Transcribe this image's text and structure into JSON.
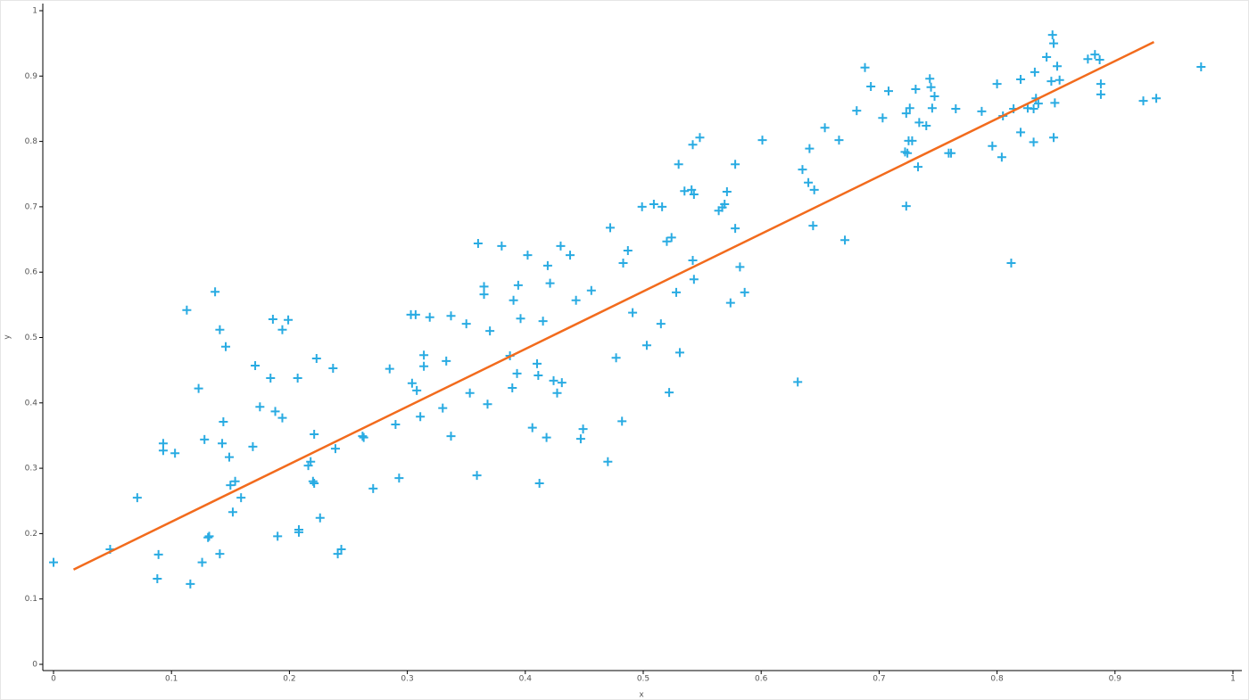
{
  "chart_data": {
    "type": "scatter",
    "x_label": "x",
    "y_label": "y",
    "xlim": [
      0,
      1
    ],
    "ylim": [
      0,
      1
    ],
    "xticks": [
      0,
      0.1,
      0.2,
      0.3,
      0.4,
      0.5,
      0.6,
      0.7,
      0.8,
      0.9,
      1
    ],
    "yticks": [
      0,
      0.1,
      0.2,
      0.3,
      0.4,
      0.5,
      0.6,
      0.7,
      0.8,
      0.9,
      1
    ],
    "series": [
      {
        "type": "scatter",
        "color": "#29abe2",
        "x": [
          0.0,
          0.048,
          0.071,
          0.089,
          0.088,
          0.093,
          0.093,
          0.103,
          0.113,
          0.116,
          0.123,
          0.126,
          0.128,
          0.131,
          0.132,
          0.137,
          0.141,
          0.141,
          0.143,
          0.144,
          0.146,
          0.149,
          0.15,
          0.152,
          0.154,
          0.159,
          0.169,
          0.171,
          0.175,
          0.184,
          0.186,
          0.188,
          0.19,
          0.194,
          0.194,
          0.199,
          0.207,
          0.208,
          0.208,
          0.216,
          0.218,
          0.22,
          0.221,
          0.221,
          0.223,
          0.226,
          0.237,
          0.239,
          0.241,
          0.244,
          0.262,
          0.263,
          0.271,
          0.285,
          0.29,
          0.293,
          0.303,
          0.304,
          0.307,
          0.308,
          0.311,
          0.314,
          0.314,
          0.319,
          0.33,
          0.333,
          0.337,
          0.337,
          0.35,
          0.353,
          0.36,
          0.359,
          0.365,
          0.365,
          0.368,
          0.37,
          0.38,
          0.387,
          0.389,
          0.39,
          0.393,
          0.394,
          0.396,
          0.402,
          0.406,
          0.41,
          0.411,
          0.412,
          0.415,
          0.418,
          0.419,
          0.421,
          0.424,
          0.427,
          0.43,
          0.431,
          0.438,
          0.443,
          0.447,
          0.449,
          0.456,
          0.47,
          0.472,
          0.477,
          0.482,
          0.483,
          0.487,
          0.491,
          0.499,
          0.503,
          0.509,
          0.515,
          0.516,
          0.52,
          0.522,
          0.524,
          0.528,
          0.53,
          0.531,
          0.535,
          0.541,
          0.542,
          0.542,
          0.543,
          0.543,
          0.548,
          0.564,
          0.567,
          0.569,
          0.571,
          0.574,
          0.578,
          0.578,
          0.582,
          0.586,
          0.601,
          0.631,
          0.635,
          0.64,
          0.641,
          0.644,
          0.645,
          0.654,
          0.666,
          0.671,
          0.681,
          0.688,
          0.693,
          0.703,
          0.708,
          0.722,
          0.723,
          0.723,
          0.724,
          0.725,
          0.726,
          0.728,
          0.731,
          0.733,
          0.734,
          0.74,
          0.743,
          0.744,
          0.745,
          0.747,
          0.759,
          0.761,
          0.765,
          0.787,
          0.796,
          0.8,
          0.804,
          0.805,
          0.812,
          0.814,
          0.82,
          0.82,
          0.826,
          0.831,
          0.831,
          0.833,
          0.832,
          0.835,
          0.842,
          0.847,
          0.848,
          0.846,
          0.848,
          0.849,
          0.851,
          0.853,
          0.877,
          0.883,
          0.887,
          0.888,
          0.888,
          0.924,
          0.935,
          0.973
        ],
        "values": [
          0.156,
          0.176,
          0.255,
          0.168,
          0.131,
          0.338,
          0.327,
          0.323,
          0.542,
          0.123,
          0.422,
          0.156,
          0.344,
          0.194,
          0.196,
          0.57,
          0.512,
          0.169,
          0.338,
          0.371,
          0.486,
          0.317,
          0.274,
          0.233,
          0.28,
          0.255,
          0.333,
          0.457,
          0.394,
          0.438,
          0.528,
          0.387,
          0.196,
          0.512,
          0.377,
          0.527,
          0.438,
          0.202,
          0.206,
          0.304,
          0.31,
          0.28,
          0.277,
          0.352,
          0.468,
          0.224,
          0.453,
          0.33,
          0.169,
          0.176,
          0.349,
          0.347,
          0.269,
          0.452,
          0.367,
          0.285,
          0.535,
          0.43,
          0.535,
          0.419,
          0.379,
          0.473,
          0.456,
          0.531,
          0.392,
          0.464,
          0.349,
          0.533,
          0.521,
          0.415,
          0.644,
          0.289,
          0.578,
          0.566,
          0.398,
          0.51,
          0.64,
          0.472,
          0.423,
          0.557,
          0.445,
          0.58,
          0.529,
          0.626,
          0.362,
          0.46,
          0.442,
          0.277,
          0.525,
          0.347,
          0.61,
          0.583,
          0.434,
          0.415,
          0.64,
          0.431,
          0.626,
          0.557,
          0.345,
          0.36,
          0.572,
          0.31,
          0.668,
          0.469,
          0.372,
          0.614,
          0.633,
          0.538,
          0.7,
          0.488,
          0.704,
          0.521,
          0.7,
          0.647,
          0.416,
          0.653,
          0.569,
          0.765,
          0.477,
          0.724,
          0.726,
          0.795,
          0.618,
          0.719,
          0.589,
          0.806,
          0.694,
          0.699,
          0.704,
          0.723,
          0.553,
          0.765,
          0.667,
          0.608,
          0.569,
          0.802,
          0.432,
          0.757,
          0.737,
          0.789,
          0.671,
          0.726,
          0.821,
          0.802,
          0.649,
          0.847,
          0.913,
          0.884,
          0.836,
          0.877,
          0.784,
          0.701,
          0.843,
          0.782,
          0.801,
          0.851,
          0.801,
          0.88,
          0.761,
          0.829,
          0.824,
          0.896,
          0.883,
          0.851,
          0.869,
          0.782,
          0.782,
          0.85,
          0.846,
          0.793,
          0.888,
          0.776,
          0.839,
          0.614,
          0.85,
          0.895,
          0.814,
          0.851,
          0.799,
          0.85,
          0.866,
          0.906,
          0.858,
          0.929,
          0.963,
          0.95,
          0.892,
          0.806,
          0.859,
          0.915,
          0.894,
          0.926,
          0.933,
          0.925,
          0.888,
          0.872,
          0.862,
          0.866,
          0.914
        ]
      },
      {
        "type": "line",
        "color": "#f26b1d",
        "x": [
          0.017,
          0.933
        ],
        "values": [
          0.145,
          0.952
        ]
      }
    ]
  }
}
